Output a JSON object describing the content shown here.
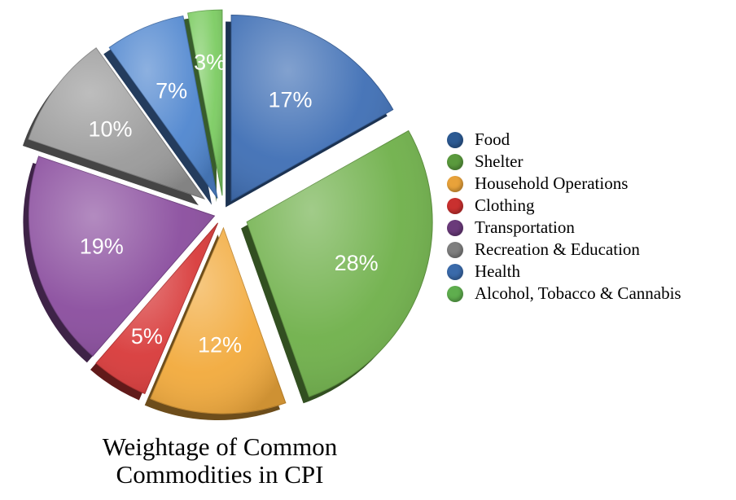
{
  "chart_data": {
    "type": "pie",
    "title": "Weightage of Common Commodities in CPI",
    "categories": [
      "Food",
      "Shelter",
      "Household Operations",
      "Clothing",
      "Transportation",
      "Recreation & Education",
      "Health",
      "Alcohol, Tobacco & Cannabis"
    ],
    "values": [
      17,
      28,
      12,
      5,
      19,
      10,
      7,
      3
    ],
    "labels": [
      "17%",
      "28%",
      "12%",
      "5%",
      "19%",
      "10%",
      "7%",
      "3%"
    ],
    "colors": [
      "#3f6fb5",
      "#6fb04a",
      "#f2aa3c",
      "#d83a3a",
      "#8a4d9e",
      "#9a9a9a",
      "#4f86cf",
      "#7ccc62"
    ],
    "legend_position": "right",
    "exploded": true
  },
  "legend": [
    {
      "label": "Food",
      "color": "#2c5a93"
    },
    {
      "label": "Shelter",
      "color": "#5a9a3d"
    },
    {
      "label": "Household Operations",
      "color": "#e8a23a"
    },
    {
      "label": "Clothing",
      "color": "#c9302f"
    },
    {
      "label": "Transportation",
      "color": "#6a3a7a"
    },
    {
      "label": "Recreation & Education",
      "color": "#7f7f7f"
    },
    {
      "label": "Health",
      "color": "#3a6aaa"
    },
    {
      "label": "Alcohol, Tobacco & Cannabis",
      "color": "#5fae4e"
    }
  ],
  "title_lines": [
    "Weightage of Common",
    "Commodities in CPI"
  ]
}
